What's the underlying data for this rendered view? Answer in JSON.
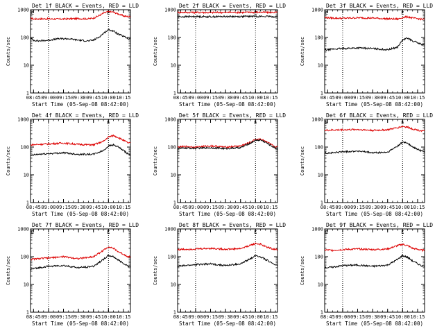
{
  "chart_data": [
    {
      "type": "line",
      "title": "Det 1f BLACK = Events, RED = LLD",
      "xlabel": "Start Time (05-Sep-08 08:42:00)",
      "ylabel": "Counts/sec",
      "y_scale": "log",
      "ylim": [
        1,
        1000
      ],
      "xlim": [
        "08:42",
        "10:22"
      ],
      "x_ticks": [
        "08:45",
        "09:00",
        "09:15",
        "09:30",
        "09:45",
        "10:00",
        "10:15"
      ],
      "y_ticks": [
        "1",
        "10",
        "100",
        "1000"
      ],
      "dotted_lines": [
        "09:00",
        "10:00"
      ],
      "markers": [
        {
          "label": "E",
          "x": "08:44"
        },
        {
          "label": "E",
          "x": "10:00"
        }
      ],
      "x": [
        "08:42",
        "08:45",
        "08:50",
        "09:00",
        "09:10",
        "09:20",
        "09:30",
        "09:40",
        "09:45",
        "09:50",
        "09:55",
        "10:00",
        "10:05",
        "10:10",
        "10:15",
        "10:20"
      ],
      "series": [
        {
          "color": "#dd0000",
          "values": [
            500,
            460,
            470,
            470,
            460,
            470,
            480,
            470,
            500,
            600,
            750,
            850,
            820,
            700,
            600,
            560
          ]
        },
        {
          "color": "#000000",
          "values": [
            95,
            80,
            75,
            80,
            90,
            90,
            80,
            75,
            80,
            100,
            140,
            190,
            170,
            130,
            110,
            90
          ]
        }
      ]
    },
    {
      "type": "line",
      "title": "Det 2f BLACK = Events, RED = LLD",
      "xlabel": "Start Time (05-Sep-08 08:42:00)",
      "ylabel": "Counts/sec",
      "y_scale": "log",
      "ylim": [
        1,
        1000
      ],
      "xlim": [
        "08:42",
        "10:22"
      ],
      "x_ticks": [
        "08:45",
        "09:00",
        "09:15",
        "09:30",
        "09:45",
        "10:00",
        "10:15"
      ],
      "y_ticks": [
        "1",
        "10",
        "100",
        "1000"
      ],
      "dotted_lines": [
        "09:00",
        "10:00"
      ],
      "markers": [
        {
          "label": "E",
          "x": "10:00"
        }
      ],
      "x": [
        "08:42",
        "08:50",
        "09:00",
        "09:15",
        "09:30",
        "09:45",
        "10:00",
        "10:10",
        "10:20"
      ],
      "series": [
        {
          "color": "#dd0000",
          "values": [
            800,
            800,
            800,
            790,
            800,
            800,
            810,
            800,
            800
          ]
        },
        {
          "color": "#000000",
          "values": [
            560,
            560,
            570,
            560,
            570,
            570,
            580,
            570,
            560
          ]
        }
      ]
    },
    {
      "type": "line",
      "title": "Det 3f BLACK = Events, RED = LLD",
      "xlabel": "Start Time (05-Sep-08 08:42:00)",
      "ylabel": "Counts/sec",
      "y_scale": "log",
      "ylim": [
        1,
        1000
      ],
      "xlim": [
        "08:42",
        "10:22"
      ],
      "x_ticks": [
        "08:45",
        "09:00",
        "09:15",
        "09:30",
        "09:45",
        "10:00",
        "10:15"
      ],
      "y_ticks": [
        "1",
        "10",
        "100",
        "1000"
      ],
      "dotted_lines": [
        "09:00",
        "10:00"
      ],
      "markers": [
        {
          "label": "E",
          "x": "08:44"
        },
        {
          "label": "E",
          "x": "10:00"
        }
      ],
      "x": [
        "08:42",
        "08:50",
        "09:00",
        "09:15",
        "09:30",
        "09:45",
        "09:55",
        "10:00",
        "10:05",
        "10:10",
        "10:20"
      ],
      "series": [
        {
          "color": "#dd0000",
          "values": [
            520,
            500,
            490,
            510,
            500,
            470,
            460,
            520,
            560,
            500,
            450
          ]
        },
        {
          "color": "#000000",
          "values": [
            35,
            38,
            40,
            42,
            40,
            36,
            45,
            80,
            95,
            75,
            55
          ]
        }
      ]
    },
    {
      "type": "line",
      "title": "Det 4f BLACK = Events, RED = LLD",
      "xlabel": "Start Time (05-Sep-08 08:42:00)",
      "ylabel": "Counts/sec",
      "y_scale": "log",
      "ylim": [
        1,
        1000
      ],
      "xlim": [
        "08:42",
        "10:22"
      ],
      "x_ticks": [
        "08:45",
        "09:00",
        "09:15",
        "09:30",
        "09:45",
        "10:00",
        "10:15"
      ],
      "y_ticks": [
        "1",
        "10",
        "100",
        "1000"
      ],
      "dotted_lines": [
        "09:00",
        "10:00"
      ],
      "markers": [
        {
          "label": "E",
          "x": "10:00"
        }
      ],
      "x": [
        "08:42",
        "08:50",
        "09:00",
        "09:15",
        "09:30",
        "09:45",
        "09:55",
        "10:00",
        "10:05",
        "10:10",
        "10:20"
      ],
      "series": [
        {
          "color": "#dd0000",
          "values": [
            120,
            125,
            130,
            140,
            125,
            120,
            160,
            230,
            260,
            220,
            140
          ]
        },
        {
          "color": "#000000",
          "values": [
            50,
            55,
            58,
            62,
            55,
            55,
            75,
            110,
            120,
            100,
            55
          ]
        }
      ]
    },
    {
      "type": "line",
      "title": "Det 5f BLACK = Events, RED = LLD",
      "xlabel": "Start Time (05-Sep-08 08:42:00)",
      "ylabel": "Counts/sec",
      "y_scale": "log",
      "ylim": [
        1,
        1000
      ],
      "xlim": [
        "08:42",
        "10:22"
      ],
      "x_ticks": [
        "08:45",
        "09:00",
        "09:15",
        "09:30",
        "09:45",
        "10:00",
        "10:15"
      ],
      "y_ticks": [
        "1",
        "10",
        "100",
        "1000"
      ],
      "dotted_lines": [
        "09:00",
        "10:00"
      ],
      "markers": [
        {
          "label": "E",
          "x": "10:00"
        }
      ],
      "x": [
        "08:42",
        "08:50",
        "09:00",
        "09:15",
        "09:30",
        "09:45",
        "09:55",
        "10:00",
        "10:05",
        "10:10",
        "10:20"
      ],
      "series": [
        {
          "color": "#dd0000",
          "values": [
            100,
            105,
            100,
            110,
            100,
            110,
            150,
            190,
            195,
            160,
            100
          ]
        },
        {
          "color": "#000000",
          "values": [
            88,
            92,
            90,
            95,
            88,
            95,
            140,
            175,
            180,
            150,
            90
          ]
        }
      ]
    },
    {
      "type": "line",
      "title": "Det 6f BLACK = Events, RED = LLD",
      "xlabel": "Start Time (05-Sep-08 08:42:00)",
      "ylabel": "Counts/sec",
      "y_scale": "log",
      "ylim": [
        1,
        1000
      ],
      "xlim": [
        "08:42",
        "10:22"
      ],
      "x_ticks": [
        "08:45",
        "09:00",
        "09:15",
        "09:30",
        "09:45",
        "10:00",
        "10:15"
      ],
      "y_ticks": [
        "1",
        "10",
        "100",
        "1000"
      ],
      "dotted_lines": [
        "09:00",
        "10:00"
      ],
      "markers": [
        {
          "label": "E",
          "x": "08:44"
        },
        {
          "label": "E",
          "x": "10:00"
        }
      ],
      "x": [
        "08:42",
        "08:50",
        "09:00",
        "09:15",
        "09:30",
        "09:45",
        "09:55",
        "10:00",
        "10:05",
        "10:10",
        "10:20"
      ],
      "series": [
        {
          "color": "#dd0000",
          "values": [
            400,
            410,
            420,
            430,
            400,
            420,
            500,
            560,
            520,
            450,
            380
          ]
        },
        {
          "color": "#000000",
          "values": [
            60,
            62,
            68,
            72,
            62,
            65,
            110,
            150,
            140,
            100,
            70
          ]
        }
      ]
    },
    {
      "type": "line",
      "title": "Det 7f BLACK = Events, RED = LLD",
      "xlabel": "Start Time (05-Sep-08 08:42:00)",
      "ylabel": "Counts/sec",
      "y_scale": "log",
      "ylim": [
        1,
        1000
      ],
      "xlim": [
        "08:42",
        "10:22"
      ],
      "x_ticks": [
        "08:45",
        "09:00",
        "09:15",
        "09:30",
        "09:45",
        "10:00",
        "10:15"
      ],
      "y_ticks": [
        "1",
        "10",
        "100",
        "1000"
      ],
      "dotted_lines": [
        "09:00",
        "10:00"
      ],
      "markers": [
        {
          "label": "E",
          "x": "08:44"
        },
        {
          "label": "E",
          "x": "10:00"
        }
      ],
      "x": [
        "08:42",
        "08:50",
        "09:00",
        "09:15",
        "09:30",
        "09:45",
        "09:55",
        "10:00",
        "10:05",
        "10:10",
        "10:20"
      ],
      "series": [
        {
          "color": "#dd0000",
          "values": [
            80,
            85,
            90,
            100,
            85,
            100,
            170,
            230,
            200,
            150,
            100
          ]
        },
        {
          "color": "#000000",
          "values": [
            35,
            40,
            45,
            48,
            40,
            45,
            80,
            110,
            100,
            75,
            45
          ]
        }
      ]
    },
    {
      "type": "line",
      "title": "Det 8f BLACK = Events, RED = LLD",
      "xlabel": "Start Time (05-Sep-08 08:42:00)",
      "ylabel": "Counts/sec",
      "y_scale": "log",
      "ylim": [
        1,
        1000
      ],
      "xlim": [
        "08:42",
        "10:22"
      ],
      "x_ticks": [
        "08:45",
        "09:00",
        "09:15",
        "09:30",
        "09:45",
        "10:00",
        "10:15"
      ],
      "y_ticks": [
        "1",
        "10",
        "100",
        "1000"
      ],
      "dotted_lines": [
        "09:00",
        "10:00"
      ],
      "markers": [
        {
          "label": "E",
          "x": "10:00"
        }
      ],
      "x": [
        "08:42",
        "08:50",
        "09:00",
        "09:15",
        "09:30",
        "09:45",
        "09:55",
        "10:00",
        "10:05",
        "10:10",
        "10:20"
      ],
      "series": [
        {
          "color": "#dd0000",
          "values": [
            180,
            185,
            190,
            200,
            185,
            195,
            260,
            300,
            280,
            230,
            180
          ]
        },
        {
          "color": "#000000",
          "values": [
            45,
            48,
            52,
            55,
            48,
            55,
            85,
            110,
            100,
            80,
            50
          ]
        }
      ]
    },
    {
      "type": "line",
      "title": "Det 9f BLACK = Events, RED = LLD",
      "xlabel": "Start Time (05-Sep-08 08:42:00)",
      "ylabel": "Counts/sec",
      "y_scale": "log",
      "ylim": [
        1,
        1000
      ],
      "xlim": [
        "08:42",
        "10:22"
      ],
      "x_ticks": [
        "08:45",
        "09:00",
        "09:15",
        "09:30",
        "09:45",
        "10:00",
        "10:15"
      ],
      "y_ticks": [
        "1",
        "10",
        "100",
        "1000"
      ],
      "dotted_lines": [
        "09:00",
        "10:00"
      ],
      "markers": [
        {
          "label": "E",
          "x": "08:44"
        },
        {
          "label": "E",
          "x": "10:00"
        }
      ],
      "x": [
        "08:42",
        "08:50",
        "09:00",
        "09:15",
        "09:30",
        "09:45",
        "09:55",
        "10:00",
        "10:05",
        "10:10",
        "10:20"
      ],
      "series": [
        {
          "color": "#dd0000",
          "values": [
            175,
            170,
            180,
            190,
            180,
            190,
            250,
            280,
            250,
            200,
            170
          ]
        },
        {
          "color": "#000000",
          "values": [
            40,
            42,
            48,
            50,
            45,
            50,
            80,
            110,
            95,
            70,
            45
          ]
        }
      ]
    }
  ]
}
